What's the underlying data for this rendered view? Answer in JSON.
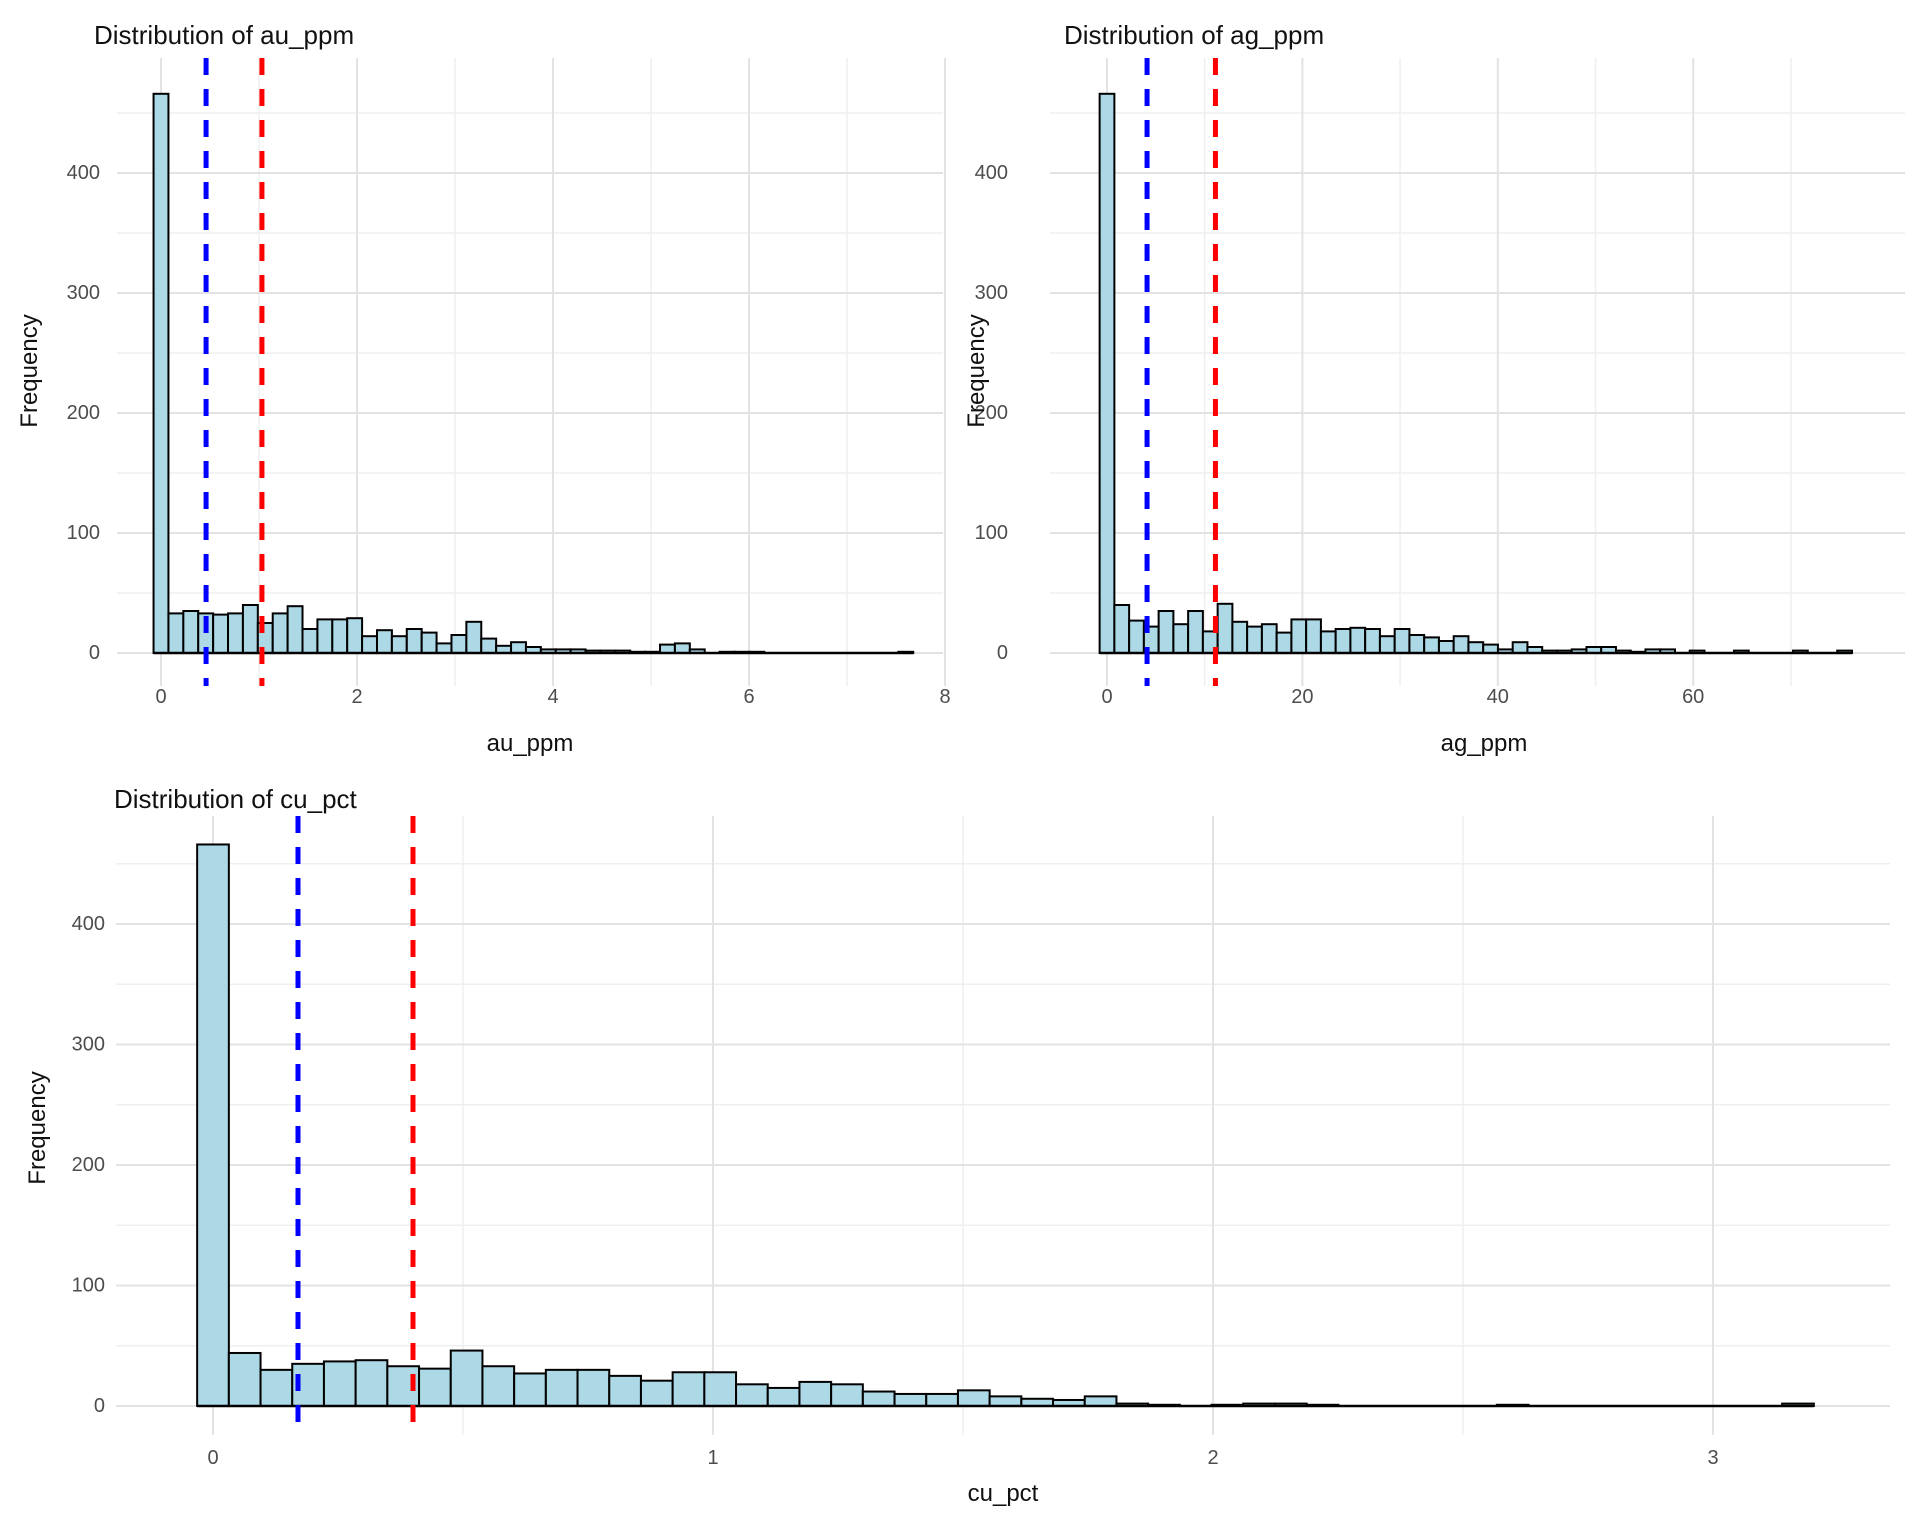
{
  "colors": {
    "background": "#FFFFFF",
    "bar_fill": "#ADD8E6",
    "bar_stroke": "#000000",
    "median_line": "#0000FF",
    "mean_line": "#FF0000",
    "grid_major": "#E3E3E3",
    "grid_minor": "#EFEFEF",
    "tick_text": "#4D4D4D",
    "title_text": "#111111"
  },
  "chart_data": [
    {
      "type": "bar",
      "subtype": "histogram",
      "title": "Distribution of au_ppm",
      "xlabel": "au_ppm",
      "ylabel": "Frequency",
      "x_ticks": [
        0,
        2,
        4,
        6,
        8
      ],
      "x_tick_labels": [
        "0",
        "2",
        "4",
        "6",
        "8"
      ],
      "x_minor_ticks": [
        1,
        3,
        5,
        7
      ],
      "y_ticks": [
        0,
        100,
        200,
        300,
        400
      ],
      "y_tick_labels": [
        "0",
        "100",
        "200",
        "300",
        "400"
      ],
      "y_minor_ticks": [
        50,
        150,
        250,
        350,
        450
      ],
      "bins": {
        "start": -0.076,
        "width": 0.152
      },
      "counts": [
        466,
        33,
        35,
        33,
        32,
        33,
        40,
        25,
        33,
        39,
        20,
        28,
        28,
        29,
        14,
        19,
        14,
        20,
        17,
        8,
        15,
        26,
        12,
        6,
        9,
        5,
        3,
        3,
        3,
        2,
        2,
        2,
        1,
        1,
        7,
        8,
        3,
        0,
        1,
        1,
        1,
        0,
        0,
        0,
        0,
        0,
        0,
        0,
        0,
        0,
        1
      ],
      "vlines": [
        {
          "name": "median-line",
          "x": 0.46,
          "color": "#0000FF",
          "style": "dashed"
        },
        {
          "name": "mean-line",
          "x": 1.03,
          "color": "#FF0000",
          "style": "dashed"
        }
      ],
      "xlim": [
        -0.45,
        7.98
      ],
      "ylim": [
        -26,
        496
      ],
      "grid": true,
      "legend": "none"
    },
    {
      "type": "bar",
      "subtype": "histogram",
      "title": "Distribution of ag_ppm",
      "xlabel": "ag_ppm",
      "ylabel": "Frequency",
      "x_ticks": [
        0,
        20,
        40,
        60
      ],
      "x_tick_labels": [
        "0",
        "20",
        "40",
        "60"
      ],
      "x_minor_ticks": [
        10,
        30,
        50,
        70
      ],
      "y_ticks": [
        0,
        100,
        200,
        300,
        400
      ],
      "y_tick_labels": [
        "0",
        "100",
        "200",
        "300",
        "400"
      ],
      "y_minor_ticks": [
        50,
        150,
        250,
        350,
        450
      ],
      "bins": {
        "start": -0.755,
        "width": 1.51
      },
      "counts": [
        466,
        40,
        27,
        22,
        35,
        24,
        35,
        18,
        41,
        26,
        22,
        24,
        17,
        28,
        28,
        18,
        20,
        21,
        20,
        14,
        20,
        15,
        13,
        10,
        14,
        9,
        7,
        3,
        9,
        5,
        2,
        2,
        3,
        5,
        5,
        2,
        1,
        3,
        3,
        0,
        2,
        0,
        0,
        2,
        0,
        0,
        0,
        2,
        0,
        0,
        2
      ],
      "vlines": [
        {
          "name": "median-line",
          "x": 4.1,
          "color": "#0000FF",
          "style": "dashed"
        },
        {
          "name": "mean-line",
          "x": 11.1,
          "color": "#FF0000",
          "style": "dashed"
        }
      ],
      "xlim": [
        -5.8,
        81.7
      ],
      "ylim": [
        -26,
        496
      ],
      "grid": true,
      "legend": "none"
    },
    {
      "type": "bar",
      "subtype": "histogram",
      "title": "Distribution of cu_pct",
      "xlabel": "cu_pct",
      "ylabel": "Frequency",
      "x_ticks": [
        0,
        1,
        2,
        3
      ],
      "x_tick_labels": [
        "0",
        "1",
        "2",
        "3"
      ],
      "x_minor_ticks": [
        0.5,
        1.5,
        2.5
      ],
      "y_ticks": [
        0,
        100,
        200,
        300,
        400
      ],
      "y_tick_labels": [
        "0",
        "100",
        "200",
        "300",
        "400"
      ],
      "y_minor_ticks": [
        50,
        150,
        250,
        350,
        450
      ],
      "bins": {
        "start": -0.0317,
        "width": 0.0634
      },
      "counts": [
        466,
        44,
        30,
        35,
        37,
        38,
        33,
        31,
        46,
        33,
        27,
        30,
        30,
        25,
        21,
        28,
        28,
        18,
        15,
        20,
        18,
        12,
        10,
        10,
        13,
        8,
        6,
        5,
        8,
        2,
        1,
        0,
        1,
        2,
        2,
        1,
        0,
        0,
        0,
        0,
        0,
        1,
        0,
        0,
        0,
        0,
        0,
        0,
        0,
        0,
        2
      ],
      "vlines": [
        {
          "name": "median-line",
          "x": 0.17,
          "color": "#0000FF",
          "style": "dashed"
        },
        {
          "name": "mean-line",
          "x": 0.4,
          "color": "#FF0000",
          "style": "dashed"
        }
      ],
      "xlim": [
        -0.19,
        3.35
      ],
      "ylim": [
        -24,
        486
      ],
      "grid": true,
      "legend": "none"
    }
  ]
}
